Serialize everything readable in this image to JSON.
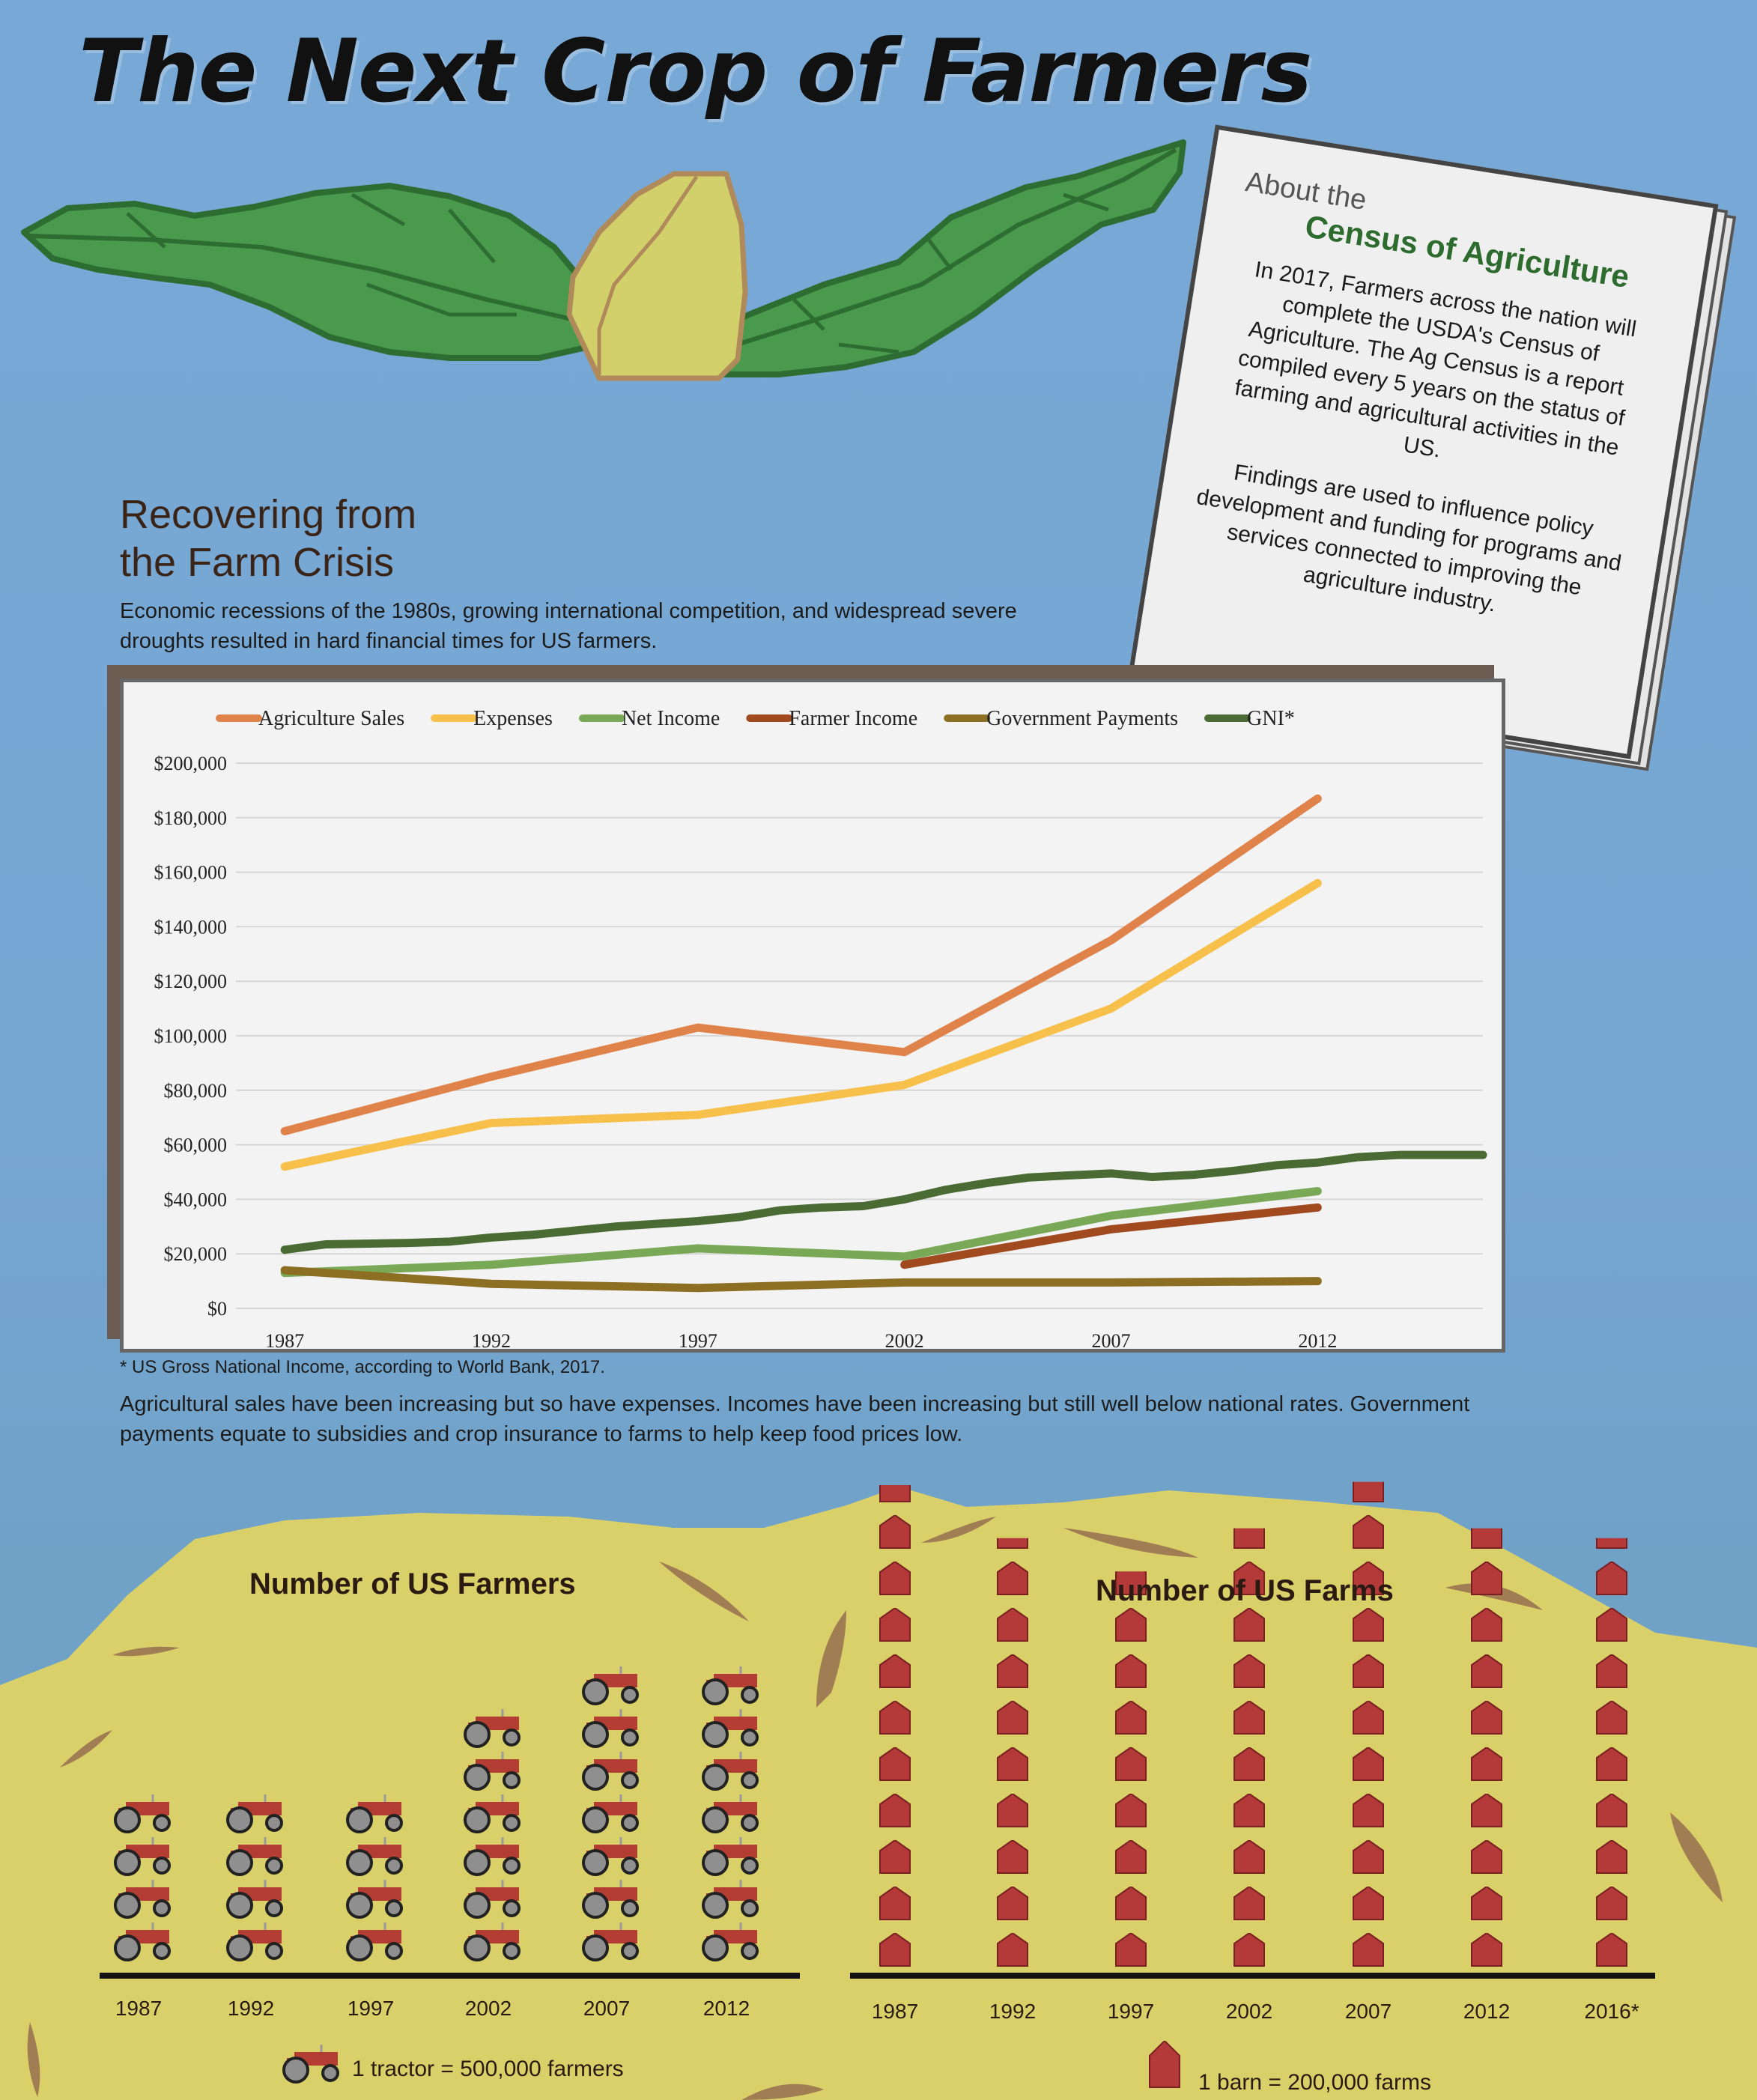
{
  "title": "The Next Crop of Farmers",
  "census": {
    "pre": "About the",
    "title": "Census of Agriculture",
    "p1": "In 2017, Farmers across the nation will complete the USDA's Census of Agriculture. The Ag Census is a report compiled every 5 years on the status of farming and agricultural activities in the US.",
    "p2": "Findings are used to influence policy development and funding for programs and services connected to improving the agriculture industry."
  },
  "section": {
    "title_line1": "Recovering from",
    "title_line2": "the Farm Crisis",
    "desc": "Economic recessions of the 1980s, growing international competition, and widespread severe droughts resulted in hard financial times for US farmers."
  },
  "footnote": "* US Gross National Income, according to World Bank, 2017.",
  "chart_caption": "Agricultural sales have been increasing but so have expenses. Incomes have been increasing but still well below national rates. Government payments  equate to subsidies and crop insurance to farms to help keep food prices low.",
  "colors": {
    "sales": "#e0834a",
    "expenses": "#f6c04a",
    "net_income": "#79a957",
    "farmer_income": "#a14a20",
    "gov_payments": "#8d6f23",
    "gni": "#4b6b34",
    "field": "#d9d06a",
    "barn": "#b43a3a",
    "tractor": "#b33c33"
  },
  "chart_data": [
    {
      "type": "line",
      "title": "",
      "xlabel": "",
      "ylabel": "",
      "x_ticks": [
        "1987",
        "1992",
        "1997",
        "2002",
        "2007",
        "2012"
      ],
      "y_ticks": [
        "$0",
        "$20,000",
        "$40,000",
        "$60,000",
        "$80,000",
        "$100,000",
        "$120,000",
        "$140,000",
        "$160,000",
        "$180,000",
        "$200,000"
      ],
      "ylim": [
        0,
        200000
      ],
      "xlim": [
        1986,
        2016
      ],
      "grid": true,
      "legend_position": "top",
      "series": [
        {
          "name": "Agriculture Sales",
          "color_key": "sales",
          "x": [
            1987,
            1992,
            1997,
            2002,
            2007,
            2012
          ],
          "y": [
            65000,
            85000,
            103000,
            94000,
            135000,
            187000
          ]
        },
        {
          "name": "Expenses",
          "color_key": "expenses",
          "x": [
            1987,
            1992,
            1997,
            2002,
            2007,
            2012
          ],
          "y": [
            52000,
            68000,
            71000,
            82000,
            110000,
            156000
          ]
        },
        {
          "name": "Net Income",
          "color_key": "net_income",
          "x": [
            1987,
            1992,
            1997,
            2002,
            2007,
            2012
          ],
          "y": [
            13000,
            16000,
            22000,
            19000,
            34000,
            43000
          ]
        },
        {
          "name": "Farmer Income",
          "color_key": "farmer_income",
          "x": [
            2002,
            2007,
            2012
          ],
          "y": [
            16000,
            29000,
            37000
          ]
        },
        {
          "name": "Government Payments",
          "color_key": "gov_payments",
          "x": [
            1987,
            1992,
            1997,
            2002,
            2007,
            2012
          ],
          "y": [
            14000,
            9000,
            7500,
            9500,
            9500,
            10000
          ]
        },
        {
          "name": "GNI*",
          "color_key": "gni",
          "x": [
            1987,
            1988,
            1990,
            1991,
            1992,
            1993,
            1994,
            1995,
            1996,
            1997,
            1998,
            1999,
            2000,
            2001,
            2002,
            2003,
            2004,
            2005,
            2006,
            2007,
            2008,
            2009,
            2010,
            2011,
            2012,
            2013,
            2014,
            2015,
            2016
          ],
          "y": [
            21500,
            23500,
            24000,
            24500,
            26000,
            27000,
            28500,
            30000,
            31000,
            32000,
            33500,
            36000,
            37000,
            37500,
            40000,
            43500,
            46000,
            48000,
            48800,
            49500,
            48200,
            49000,
            50500,
            52500,
            53500,
            55500,
            56300,
            56300,
            56300
          ]
        }
      ]
    },
    {
      "type": "bar",
      "title": "Number of US Farmers",
      "unit_label": "1 tractor = 500,000 farmers",
      "categories": [
        "1987",
        "1992",
        "1997",
        "2002",
        "2007",
        "2012"
      ],
      "values": [
        4,
        4,
        4,
        6,
        7,
        7
      ]
    },
    {
      "type": "bar",
      "title": "Number of US Farms",
      "unit_label": "1 barn = 200,000 farms",
      "categories": [
        "1987",
        "1992",
        "1997",
        "2002",
        "2007",
        "2012",
        "2016*"
      ],
      "values": [
        10.5,
        9.3,
        8.7,
        9.6,
        10.6,
        9.6,
        9.3
      ]
    }
  ]
}
